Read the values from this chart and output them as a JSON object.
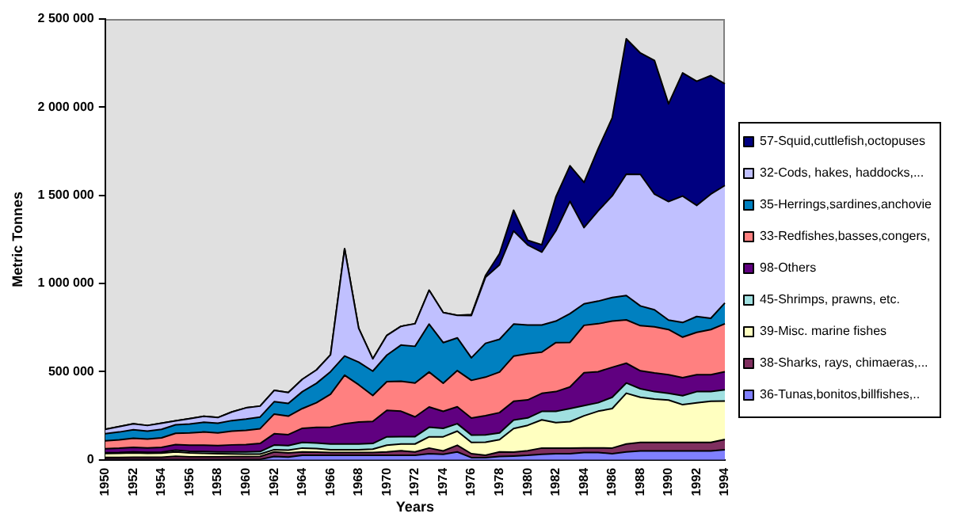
{
  "chart_data": {
    "type": "area",
    "stacked": true,
    "xlabel": "Years",
    "ylabel": "Metric Tonnes",
    "grid": false,
    "legend": "right",
    "marker": "none",
    "categories": [
      "1950",
      null,
      "1952",
      null,
      "1954",
      null,
      "1956",
      null,
      "1958",
      null,
      "1960",
      null,
      "1962",
      null,
      "1964",
      null,
      "1966",
      null,
      "1968",
      null,
      "1970",
      null,
      "1972",
      null,
      "1974",
      null,
      "1976",
      null,
      "1978",
      null,
      "1980",
      null,
      "1982",
      null,
      "1984",
      null,
      "1986",
      null,
      "1988",
      null,
      "1990",
      null,
      "1992",
      null,
      "1994"
    ],
    "ylim": [
      0,
      2500000
    ],
    "yticks": [
      {
        "value": 0,
        "label": "0"
      },
      {
        "value": 500000,
        "label": "500 000"
      },
      {
        "value": 1000000,
        "label": "1 000 000"
      },
      {
        "value": 1500000,
        "label": "1 500 000"
      },
      {
        "value": 2000000,
        "label": "2 000 000"
      },
      {
        "value": 2500000,
        "label": "2 500 000"
      }
    ],
    "series": [
      {
        "name": "36-Tunas,bonitos,billfishes,..",
        "color": "#8080ff",
        "values": [
          2000,
          2000,
          2000,
          2000,
          2000,
          2000,
          2000,
          2000,
          2000,
          3000,
          3000,
          3000,
          19000,
          16000,
          26000,
          26000,
          26000,
          26000,
          26000,
          26000,
          26000,
          26000,
          26000,
          35000,
          32000,
          45000,
          13000,
          13000,
          19000,
          22000,
          26000,
          32000,
          35000,
          35000,
          42000,
          42000,
          35000,
          45000,
          51000,
          51000,
          51000,
          51000,
          51000,
          51000,
          58000
        ]
      },
      {
        "name": "38-Sharks, rays, chimaeras,...",
        "color": "#7f2f5f",
        "values": [
          12000,
          12000,
          13000,
          13000,
          13000,
          18000,
          15000,
          15000,
          15000,
          15000,
          15000,
          16000,
          26000,
          24000,
          19000,
          18000,
          16000,
          16000,
          16000,
          16000,
          19000,
          26000,
          19000,
          32000,
          19000,
          38000,
          22000,
          13000,
          26000,
          22000,
          26000,
          35000,
          32000,
          32000,
          26000,
          26000,
          32000,
          45000,
          48000,
          48000,
          48000,
          48000,
          48000,
          48000,
          58000
        ]
      },
      {
        "name": "39-Misc. marine fishes",
        "color": "#ffffc0",
        "values": [
          22000,
          23000,
          24000,
          22000,
          23000,
          25000,
          22000,
          20000,
          18000,
          16000,
          15000,
          14000,
          13000,
          15000,
          22000,
          20000,
          16000,
          16000,
          16000,
          19000,
          38000,
          38000,
          45000,
          64000,
          80000,
          80000,
          64000,
          74000,
          70000,
          134000,
          144000,
          160000,
          144000,
          150000,
          182000,
          208000,
          224000,
          288000,
          256000,
          246000,
          240000,
          214000,
          224000,
          234000,
          218000
        ]
      },
      {
        "name": "45-Shrimps, prawns, etc.",
        "color": "#a0e0e0",
        "values": [
          5000,
          5000,
          6000,
          6000,
          6000,
          10000,
          10000,
          10000,
          10000,
          11000,
          12000,
          14000,
          26000,
          26000,
          32000,
          32000,
          32000,
          32000,
          32000,
          32000,
          48000,
          42000,
          42000,
          54000,
          48000,
          42000,
          42000,
          42000,
          38000,
          48000,
          42000,
          48000,
          64000,
          74000,
          58000,
          48000,
          64000,
          58000,
          48000,
          42000,
          38000,
          51000,
          64000,
          54000,
          64000
        ]
      },
      {
        "name": "98-Others",
        "color": "#600080",
        "values": [
          22000,
          24000,
          26000,
          25000,
          27000,
          32000,
          34000,
          36000,
          36000,
          40000,
          42000,
          46000,
          64000,
          62000,
          80000,
          88000,
          96000,
          115000,
          125000,
          125000,
          150000,
          144000,
          112000,
          115000,
          96000,
          96000,
          96000,
          109000,
          115000,
          106000,
          102000,
          102000,
          112000,
          122000,
          186000,
          176000,
          170000,
          112000,
          102000,
          106000,
          106000,
          102000,
          96000,
          96000,
          102000
        ]
      },
      {
        "name": "33-Redfishes,basses,congers,",
        "color": "#ff8080",
        "values": [
          45000,
          48000,
          52000,
          50000,
          54000,
          64000,
          70000,
          75000,
          72000,
          78000,
          80000,
          84000,
          112000,
          105000,
          112000,
          140000,
          186000,
          275000,
          211000,
          147000,
          163000,
          170000,
          192000,
          198000,
          160000,
          205000,
          214000,
          218000,
          230000,
          256000,
          262000,
          234000,
          278000,
          253000,
          269000,
          272000,
          262000,
          246000,
          256000,
          262000,
          256000,
          230000,
          240000,
          256000,
          272000
        ]
      },
      {
        "name": "35-Herrings,sardines,anchovie",
        "color": "#0080c0",
        "values": [
          40000,
          44000,
          48000,
          45000,
          48000,
          48000,
          50000,
          55000,
          55000,
          60000,
          64000,
          66000,
          70000,
          72000,
          96000,
          110000,
          128000,
          109000,
          128000,
          138000,
          150000,
          205000,
          208000,
          272000,
          230000,
          186000,
          128000,
          192000,
          186000,
          182000,
          163000,
          154000,
          122000,
          163000,
          122000,
          128000,
          134000,
          138000,
          112000,
          96000,
          54000,
          83000,
          90000,
          64000,
          118000
        ]
      },
      {
        "name": "32-Cods, hakes, haddocks,...",
        "color": "#c0c0ff",
        "values": [
          25000,
          31000,
          34000,
          32000,
          35000,
          22000,
          31000,
          34000,
          32000,
          49000,
          64000,
          62000,
          64000,
          62000,
          70000,
          76000,
          96000,
          608000,
          192000,
          70000,
          112000,
          106000,
          128000,
          192000,
          170000,
          128000,
          240000,
          374000,
          422000,
          528000,
          454000,
          413000,
          512000,
          637000,
          432000,
          512000,
          576000,
          688000,
          746000,
          656000,
          672000,
          717000,
          630000,
          704000,
          666000
        ]
      },
      {
        "name": "57-Squid,cuttlefish,octopuses",
        "color": "#000080",
        "values": [
          0,
          0,
          0,
          0,
          0,
          0,
          0,
          0,
          0,
          0,
          0,
          0,
          0,
          0,
          0,
          0,
          0,
          0,
          0,
          0,
          0,
          0,
          0,
          0,
          0,
          0,
          5000,
          10000,
          64000,
          118000,
          26000,
          42000,
          192000,
          202000,
          256000,
          352000,
          442000,
          768000,
          688000,
          758000,
          554000,
          698000,
          704000,
          672000,
          576000
        ]
      }
    ]
  }
}
